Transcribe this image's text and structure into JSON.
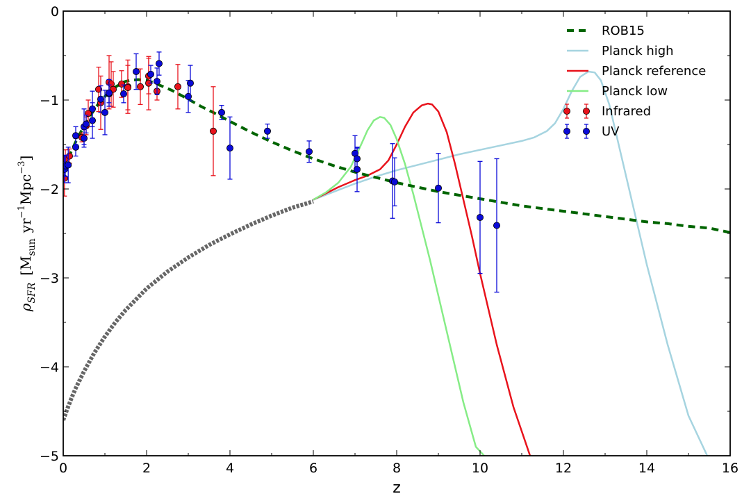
{
  "chart_data": {
    "type": "scatter",
    "title": "",
    "xlabel": "z",
    "ylabel": "ρ_SFR [M_sun yr^-1 Mpc^-3]",
    "xlim": [
      0,
      16
    ],
    "ylim": [
      -5,
      0
    ],
    "xticks": [
      0,
      2,
      4,
      6,
      8,
      10,
      12,
      14,
      16
    ],
    "yticks": [
      0,
      -1,
      -2,
      -3,
      -4,
      -5
    ],
    "grid": false,
    "legend_position": "top-right",
    "colors": {
      "rob15": "#006400",
      "extrapolation": "#666666",
      "planck_high": "#a6d4e0",
      "planck_reference": "#e8131c",
      "planck_low": "#86ec86",
      "infrared": "#e8131c",
      "uv": "#0a0ad8"
    },
    "series": [
      {
        "name": "ROB15",
        "kind": "line",
        "style": "dashed",
        "x": [
          0,
          0.1,
          0.2,
          0.3,
          0.4,
          0.5,
          0.6,
          0.7,
          0.8,
          0.9,
          1.0,
          1.1,
          1.2,
          1.3,
          1.4,
          1.5,
          1.6,
          1.8,
          2.0,
          2.2,
          2.4,
          2.6,
          2.8,
          3.0,
          3.3,
          3.6,
          4.0,
          4.5,
          5.0,
          5.5,
          6.0,
          6.5,
          7.0,
          7.5,
          8.0,
          8.5,
          9.0,
          9.5,
          10.0,
          10.5,
          11.0,
          11.5,
          12.0,
          12.5,
          13.0,
          13.5,
          14.0,
          14.5,
          15.0,
          15.5,
          16.0
        ],
        "y": [
          -1.77,
          -1.67,
          -1.57,
          -1.47,
          -1.38,
          -1.29,
          -1.21,
          -1.14,
          -1.07,
          -1.01,
          -0.96,
          -0.91,
          -0.87,
          -0.84,
          -0.81,
          -0.79,
          -0.78,
          -0.77,
          -0.78,
          -0.81,
          -0.85,
          -0.89,
          -0.94,
          -0.99,
          -1.07,
          -1.14,
          -1.24,
          -1.36,
          -1.47,
          -1.57,
          -1.66,
          -1.74,
          -1.81,
          -1.87,
          -1.93,
          -1.98,
          -2.03,
          -2.07,
          -2.11,
          -2.15,
          -2.19,
          -2.22,
          -2.25,
          -2.28,
          -2.31,
          -2.34,
          -2.37,
          -2.39,
          -2.42,
          -2.44,
          -2.49
        ]
      },
      {
        "name": "",
        "kind": "line",
        "style": "extrapolation",
        "x": [
          0,
          0.1,
          0.2,
          0.3,
          0.5,
          0.75,
          1.0,
          1.25,
          1.5,
          2.0,
          2.5,
          3.0,
          3.5,
          4.0,
          4.5,
          5.0,
          5.5,
          6.0
        ],
        "y": [
          -4.6,
          -4.47,
          -4.35,
          -4.24,
          -4.05,
          -3.84,
          -3.66,
          -3.5,
          -3.36,
          -3.12,
          -2.93,
          -2.77,
          -2.63,
          -2.51,
          -2.4,
          -2.3,
          -2.21,
          -2.14
        ]
      },
      {
        "name": "Planck high",
        "kind": "line",
        "x": [
          6.0,
          6.5,
          7.0,
          7.5,
          8.0,
          8.5,
          9.0,
          9.5,
          10.0,
          10.5,
          11.0,
          11.3,
          11.6,
          11.8,
          12.0,
          12.2,
          12.4,
          12.6,
          12.75,
          12.9,
          13.1,
          13.3,
          13.6,
          14.0,
          14.5,
          15.0,
          15.5
        ],
        "y": [
          -2.12,
          -2.03,
          -1.94,
          -1.86,
          -1.79,
          -1.73,
          -1.67,
          -1.61,
          -1.56,
          -1.51,
          -1.46,
          -1.42,
          -1.35,
          -1.26,
          -1.1,
          -0.9,
          -0.74,
          -0.68,
          -0.69,
          -0.78,
          -1.05,
          -1.45,
          -2.05,
          -2.85,
          -3.75,
          -4.55,
          -5.05
        ]
      },
      {
        "name": "Planck reference",
        "kind": "line",
        "x": [
          6.0,
          6.3,
          6.6,
          7.0,
          7.3,
          7.6,
          7.8,
          8.0,
          8.2,
          8.4,
          8.6,
          8.75,
          8.85,
          9.0,
          9.2,
          9.4,
          9.6,
          9.8,
          10.0,
          10.4,
          10.8,
          11.2,
          11.5
        ],
        "y": [
          -2.12,
          -2.05,
          -1.98,
          -1.9,
          -1.85,
          -1.78,
          -1.68,
          -1.5,
          -1.3,
          -1.14,
          -1.06,
          -1.04,
          -1.05,
          -1.13,
          -1.36,
          -1.72,
          -2.12,
          -2.52,
          -2.95,
          -3.75,
          -4.45,
          -5.0,
          -5.05
        ]
      },
      {
        "name": "Planck low",
        "kind": "line",
        "x": [
          6.0,
          6.3,
          6.6,
          6.9,
          7.1,
          7.3,
          7.45,
          7.6,
          7.7,
          7.85,
          8.0,
          8.2,
          8.4,
          8.6,
          8.8,
          9.0,
          9.3,
          9.6,
          9.9,
          10.2
        ],
        "y": [
          -2.12,
          -2.04,
          -1.93,
          -1.75,
          -1.55,
          -1.34,
          -1.23,
          -1.19,
          -1.2,
          -1.28,
          -1.44,
          -1.72,
          -2.06,
          -2.43,
          -2.8,
          -3.2,
          -3.8,
          -4.4,
          -4.9,
          -5.05
        ]
      },
      {
        "name": "Infrared",
        "kind": "points",
        "marker": "circle",
        "points": [
          {
            "x": 0.03,
            "y": -1.88,
            "lo": 0.2,
            "hi": 0.2
          },
          {
            "x": 0.05,
            "y": -1.66,
            "lo": 0.1,
            "hi": 0.1
          },
          {
            "x": 0.15,
            "y": -1.63,
            "lo": 0.08,
            "hi": 0.08
          },
          {
            "x": 0.45,
            "y": -1.42,
            "lo": 0.05,
            "hi": 0.05
          },
          {
            "x": 0.55,
            "y": -1.29,
            "lo": 0.1,
            "hi": 0.1
          },
          {
            "x": 0.6,
            "y": -1.15,
            "lo": 0.15,
            "hi": 0.15
          },
          {
            "x": 0.85,
            "y": -0.88,
            "lo": 0.25,
            "hi": 0.25
          },
          {
            "x": 0.9,
            "y": -1.03,
            "lo": 0.3,
            "hi": 0.3
          },
          {
            "x": 1.1,
            "y": -0.8,
            "lo": 0.3,
            "hi": 0.3
          },
          {
            "x": 1.15,
            "y": -0.82,
            "lo": 0.25,
            "hi": 0.25
          },
          {
            "x": 1.2,
            "y": -0.88,
            "lo": 0.2,
            "hi": 0.2
          },
          {
            "x": 1.4,
            "y": -0.82,
            "lo": 0.15,
            "hi": 0.15
          },
          {
            "x": 1.55,
            "y": -0.85,
            "lo": 0.3,
            "hi": 0.3
          },
          {
            "x": 1.55,
            "y": -0.86,
            "lo": 0.25,
            "hi": 0.25
          },
          {
            "x": 1.85,
            "y": -0.85,
            "lo": 0.2,
            "hi": 0.2
          },
          {
            "x": 2.05,
            "y": -0.73,
            "lo": 0.2,
            "hi": 0.2
          },
          {
            "x": 2.05,
            "y": -0.81,
            "lo": 0.3,
            "hi": 0.3
          },
          {
            "x": 2.25,
            "y": -0.9,
            "lo": 0.1,
            "hi": 0.1
          },
          {
            "x": 2.75,
            "y": -0.85,
            "lo": 0.25,
            "hi": 0.25
          },
          {
            "x": 3.6,
            "y": -1.35,
            "lo": 0.5,
            "hi": 0.5
          }
        ]
      },
      {
        "name": "UV",
        "kind": "points",
        "marker": "circle",
        "points": [
          {
            "x": 0.03,
            "y": -1.78,
            "lo": 0.15,
            "hi": 0.15
          },
          {
            "x": 0.05,
            "y": -1.74,
            "lo": 0.12,
            "hi": 0.12
          },
          {
            "x": 0.12,
            "y": -1.73,
            "lo": 0.2,
            "hi": 0.2
          },
          {
            "x": 0.3,
            "y": -1.53,
            "lo": 0.1,
            "hi": 0.1
          },
          {
            "x": 0.3,
            "y": -1.4,
            "lo": 0.1,
            "hi": 0.1
          },
          {
            "x": 0.5,
            "y": -1.43,
            "lo": 0.1,
            "hi": 0.1
          },
          {
            "x": 0.5,
            "y": -1.3,
            "lo": 0.2,
            "hi": 0.2
          },
          {
            "x": 0.55,
            "y": -1.27,
            "lo": 0.1,
            "hi": 0.1
          },
          {
            "x": 0.7,
            "y": -1.23,
            "lo": 0.2,
            "hi": 0.2
          },
          {
            "x": 0.7,
            "y": -1.1,
            "lo": 0.2,
            "hi": 0.2
          },
          {
            "x": 0.9,
            "y": -0.99,
            "lo": 0.15,
            "hi": 0.15
          },
          {
            "x": 1.0,
            "y": -1.14,
            "lo": 0.25,
            "hi": 0.25
          },
          {
            "x": 1.1,
            "y": -0.93,
            "lo": 0.1,
            "hi": 0.1
          },
          {
            "x": 1.1,
            "y": -0.92,
            "lo": 0.15,
            "hi": 0.15
          },
          {
            "x": 1.45,
            "y": -0.93,
            "lo": 0.1,
            "hi": 0.1
          },
          {
            "x": 1.75,
            "y": -0.68,
            "lo": 0.2,
            "hi": 0.2
          },
          {
            "x": 2.1,
            "y": -0.71,
            "lo": 0.1,
            "hi": 0.1
          },
          {
            "x": 2.25,
            "y": -0.79,
            "lo": 0.15,
            "hi": 0.15
          },
          {
            "x": 2.3,
            "y": -0.59,
            "lo": 0.13,
            "hi": 0.13
          },
          {
            "x": 3.0,
            "y": -0.96,
            "lo": 0.18,
            "hi": 0.18
          },
          {
            "x": 3.05,
            "y": -0.81,
            "lo": 0.2,
            "hi": 0.2
          },
          {
            "x": 3.8,
            "y": -1.14,
            "lo": 0.08,
            "hi": 0.08
          },
          {
            "x": 4.0,
            "y": -1.54,
            "lo": 0.35,
            "hi": 0.35
          },
          {
            "x": 4.9,
            "y": -1.35,
            "lo": 0.08,
            "hi": 0.08
          },
          {
            "x": 5.9,
            "y": -1.58,
            "lo": 0.12,
            "hi": 0.12
          },
          {
            "x": 7.0,
            "y": -1.6,
            "lo": 0.2,
            "hi": 0.2
          },
          {
            "x": 7.05,
            "y": -1.78,
            "lo": 0.25,
            "hi": 0.25
          },
          {
            "x": 7.05,
            "y": -1.66,
            "lo": 0.12,
            "hi": 0.12
          },
          {
            "x": 7.9,
            "y": -1.91,
            "lo": 0.42,
            "hi": 0.42
          },
          {
            "x": 7.95,
            "y": -1.92,
            "lo": 0.27,
            "hi": 0.27
          },
          {
            "x": 9.0,
            "y": -1.99,
            "lo": 0.39,
            "hi": 0.39
          },
          {
            "x": 10.0,
            "y": -2.32,
            "lo": 0.63,
            "hi": 0.63
          },
          {
            "x": 10.4,
            "y": -2.41,
            "lo": 0.75,
            "hi": 0.75
          }
        ]
      }
    ],
    "legend": [
      {
        "label": "ROB15",
        "series": "ROB15"
      },
      {
        "label": "Planck high",
        "series": "Planck high"
      },
      {
        "label": "Planck reference",
        "series": "Planck reference"
      },
      {
        "label": "Planck low",
        "series": "Planck low"
      },
      {
        "label": "Infrared",
        "series": "Infrared"
      },
      {
        "label": "UV",
        "series": "UV"
      }
    ]
  }
}
